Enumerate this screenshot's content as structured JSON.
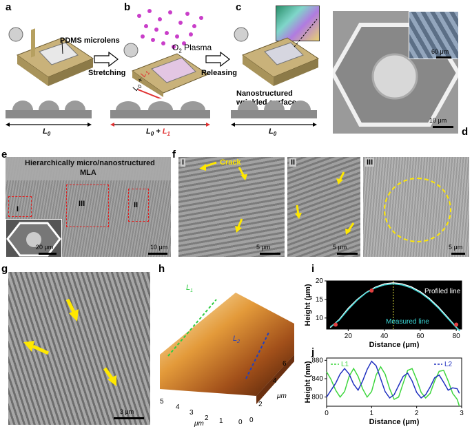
{
  "panels": {
    "a": {
      "label": "a",
      "annotation": "PDMS microlens",
      "length": "L",
      "length_sub": "0"
    },
    "b": {
      "label": "b",
      "annotation": "O",
      "annotation_sub": "2",
      "annotation_rest": " Plasma",
      "arrow1": "Stretching",
      "len_label": "L",
      "len_sub0": "0",
      "len_plus": " + ",
      "len_red": "L",
      "len_sub1": "1"
    },
    "c": {
      "label": "c",
      "arrow": "Releasing",
      "annotation_line1": "Nanostructured",
      "annotation_line2": "wrinkled surface",
      "length": "L",
      "length_sub": "0"
    },
    "d": {
      "label": "d",
      "scale_inset": "60 μm",
      "scale_main": "10 μm"
    },
    "e": {
      "label": "e",
      "title_line1": "Hierarchically micro/nanostructured",
      "title_line2": "MLA",
      "region1": "I",
      "region2": "II",
      "region3": "III",
      "scale_inset": "20 μm",
      "scale_main": "10 μm"
    },
    "f": {
      "label": "f",
      "sub1": "I",
      "sub2": "II",
      "sub3": "III",
      "crack_label": "Crack",
      "scale1": "5 μm",
      "scale2": "5 μm",
      "scale3": "5 μm"
    },
    "g": {
      "label": "g",
      "scale": "3 μm"
    },
    "h": {
      "label": "h",
      "l1": "L",
      "l1_sub": "1",
      "l2": "L",
      "l2_sub": "2",
      "x_ticks": [
        "5",
        "4",
        "3",
        "2",
        "1",
        "0"
      ],
      "y_ticks": [
        "0",
        "2",
        "4",
        "6"
      ],
      "axis_unit": "μm"
    },
    "i": {
      "label": "i",
      "profiled": "Profiled line",
      "measured": "Measured line"
    },
    "j": {
      "label": "j"
    }
  },
  "chart_data": [
    {
      "type": "line",
      "panel": "i",
      "title": "",
      "xlabel": "Distance (μm)",
      "ylabel": "Height (μm)",
      "xlim": [
        8,
        83
      ],
      "ylim": [
        7,
        20
      ],
      "xticks": [
        20,
        40,
        60,
        80
      ],
      "yticks": [
        10,
        15,
        20
      ],
      "background": "#000000",
      "series": [
        {
          "name": "Profiled line",
          "color": "#ffffff",
          "x": [
            10,
            15,
            20,
            25,
            30,
            35,
            40,
            45,
            50,
            55,
            60,
            65,
            70,
            75,
            80,
            82
          ],
          "y": [
            7.4,
            9.6,
            12.6,
            15.0,
            16.9,
            18.3,
            19.2,
            19.5,
            19.2,
            18.4,
            17.1,
            15.3,
            13.0,
            10.3,
            7.5,
            6.5
          ]
        },
        {
          "name": "Measured line",
          "color": "#3ad6d6",
          "x": [
            10,
            15,
            20,
            25,
            30,
            35,
            40,
            45,
            50,
            55,
            60,
            65,
            70,
            75,
            80,
            82
          ],
          "y": [
            7.6,
            9.4,
            12.3,
            14.8,
            16.8,
            18.1,
            18.9,
            19.2,
            18.9,
            18.1,
            16.8,
            15.0,
            12.7,
            10.0,
            7.4,
            6.5
          ]
        }
      ],
      "markers": [
        {
          "x": 13,
          "y": 8.2
        },
        {
          "x": 33,
          "y": 17.4
        },
        {
          "x": 80,
          "y": 8.2
        }
      ],
      "vline_x": 45
    },
    {
      "type": "line",
      "panel": "j",
      "title": "",
      "xlabel": "Distance (μm)",
      "ylabel": "Height (nm)",
      "xlim": [
        0,
        3
      ],
      "ylim": [
        780,
        885
      ],
      "xticks": [
        0,
        1,
        2,
        3
      ],
      "yticks": [
        800,
        840,
        880
      ],
      "series": [
        {
          "name": "L1",
          "color": "#3dd63d",
          "x": [
            0,
            0.1,
            0.2,
            0.3,
            0.4,
            0.5,
            0.6,
            0.7,
            0.8,
            0.9,
            1.0,
            1.1,
            1.2,
            1.3,
            1.4,
            1.5,
            1.6,
            1.7,
            1.8,
            1.9,
            2.0,
            2.1,
            2.2,
            2.3,
            2.4,
            2.5,
            2.6,
            2.7,
            2.8,
            2.9,
            2.95
          ],
          "y": [
            855,
            838,
            815,
            800,
            812,
            845,
            862,
            845,
            818,
            800,
            812,
            848,
            866,
            850,
            818,
            795,
            800,
            830,
            858,
            862,
            838,
            810,
            798,
            808,
            835,
            856,
            858,
            835,
            808,
            795,
            780
          ]
        },
        {
          "name": "L2",
          "color": "#2030c0",
          "x": [
            0,
            0.1,
            0.2,
            0.3,
            0.4,
            0.5,
            0.6,
            0.7,
            0.8,
            0.9,
            1.0,
            1.1,
            1.2,
            1.3,
            1.4,
            1.5,
            1.6,
            1.7,
            1.8,
            1.9,
            2.0,
            2.1,
            2.2,
            2.3,
            2.4,
            2.5,
            2.6,
            2.7,
            2.8,
            2.9,
            2.95
          ],
          "y": [
            800,
            815,
            830,
            850,
            862,
            850,
            828,
            815,
            835,
            860,
            878,
            868,
            840,
            812,
            798,
            805,
            825,
            845,
            852,
            835,
            810,
            798,
            805,
            822,
            842,
            848,
            832,
            815,
            820,
            818,
            808
          ]
        }
      ],
      "legend": [
        "L1",
        "L2"
      ]
    }
  ]
}
